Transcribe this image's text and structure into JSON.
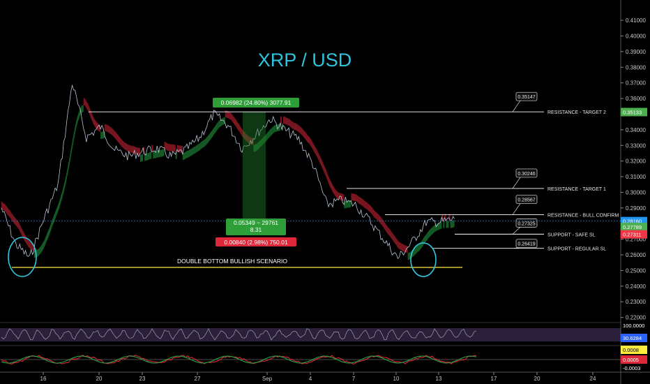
{
  "chart_data": {
    "type": "line",
    "title": "XRP / USD",
    "x_ticks": [
      "16",
      "20",
      "23",
      "27",
      "Sep",
      "4",
      "7",
      "10",
      "13",
      "17",
      "20",
      "24"
    ],
    "y_ticks": [
      "0.41000",
      "0.40000",
      "0.39000",
      "0.38000",
      "0.37000",
      "0.36000",
      "0.35000",
      "0.34000",
      "0.33000",
      "0.32000",
      "0.31000",
      "0.30000",
      "0.29000",
      "0.28000",
      "0.27000",
      "0.26000",
      "0.25000",
      "0.24000",
      "0.23000",
      "0.22000"
    ],
    "ylim": [
      0.2185,
      0.4145
    ],
    "x_days": [
      13,
      14,
      15,
      16,
      17,
      18,
      19,
      20,
      21,
      22,
      23,
      24,
      25,
      26,
      27,
      28,
      29,
      30,
      31,
      32,
      33,
      34,
      35,
      36,
      37,
      38,
      39,
      40,
      41,
      42,
      43,
      44,
      45
    ],
    "series": [
      {
        "name": "XRP/USD",
        "values": [
          0.29,
          0.267,
          0.258,
          0.283,
          0.305,
          0.37,
          0.335,
          0.342,
          0.327,
          0.323,
          0.326,
          0.328,
          0.323,
          0.327,
          0.335,
          0.35,
          0.343,
          0.328,
          0.337,
          0.347,
          0.34,
          0.334,
          0.318,
          0.292,
          0.295,
          0.292,
          0.282,
          0.27,
          0.258,
          0.268,
          0.281,
          0.281,
          0.283
        ]
      }
    ],
    "horizontal_levels": [
      {
        "label": "RESISTANCE - TARGET 2",
        "value": 0.35147,
        "value_text": "0.35147"
      },
      {
        "label": "RESISTANCE - TARGET 1",
        "value": 0.30246,
        "value_text": "0.30246"
      },
      {
        "label": "RESISTANCE - BULL CONFIRM",
        "value": 0.28567,
        "value_text": "0.28567"
      },
      {
        "label": "SUPPORT - SAFE SL",
        "value": 0.27325,
        "value_text": "0.27325"
      },
      {
        "label": "SUPPORT - REGULAR SL",
        "value": 0.26419,
        "value_text": "0.26419"
      }
    ],
    "price_tags": [
      {
        "text": "0.35133",
        "value": 0.35133,
        "color": "#4caf50"
      },
      {
        "text": "0.28160",
        "value": 0.2816,
        "color": "#2196f3"
      },
      {
        "text": "0.27789",
        "value": 0.27789,
        "color": "#4caf50"
      },
      {
        "text": "0.27311",
        "value": 0.27311,
        "color": "#f23645"
      }
    ],
    "annotations": {
      "double_bottom": "DOUBLE BOTTOM BULLISH SCENARIO",
      "double_bottom_level": 0.252,
      "measure_top": "0.06982 (24.80%) 3077.91",
      "measure_mid_1": "0.05349 ~ 29761",
      "measure_mid_2": "8.31",
      "measure_bottom": "0.00840 (2.98%) 750.01"
    },
    "rsi_axis": [
      "100.0000",
      "30.6284"
    ],
    "macd_axis": [
      "0.0008",
      "0.0005",
      "-0.0003"
    ],
    "colors": {
      "up": "#26a645",
      "down": "#e0283a",
      "title": "#2ec4de",
      "level": "#ffffff",
      "double_bottom": "#ffeb3b",
      "circle": "#30c8e0",
      "rsi": "#7b5aa6"
    }
  }
}
